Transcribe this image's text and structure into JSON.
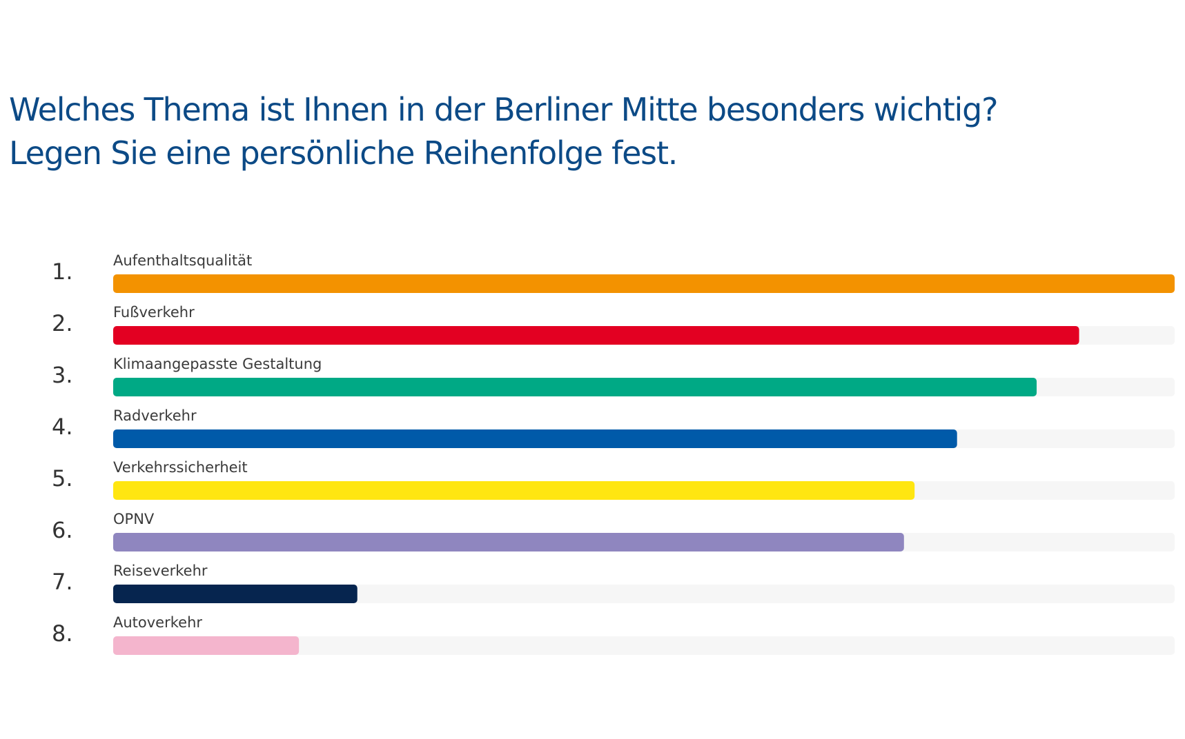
{
  "title_lines": [
    "Welches Thema ist Ihnen in der Berliner Mitte besonders wichtig?",
    "Legen Sie eine persönliche Reihenfolge fest."
  ],
  "colors": {
    "title": "#0c4a86",
    "track": "#f6f6f6",
    "rank_text": "#333333",
    "label_text": "#3a3a3a"
  },
  "chart_data": {
    "type": "bar",
    "orientation": "horizontal",
    "title": "Welches Thema ist Ihnen in der Berliner Mitte besonders wichtig? Legen Sie eine persönliche Reihenfolge fest.",
    "xlim": [
      0,
      100
    ],
    "grid": false,
    "ranks": [
      "1.",
      "2.",
      "3.",
      "4.",
      "5.",
      "6.",
      "7.",
      "8."
    ],
    "categories": [
      "Aufenthaltsqualität",
      "Fußverkehr",
      "Klimaangepasste Gestaltung",
      "Radverkehr",
      "Verkehrssicherheit",
      "OPNV",
      "Reiseverkehr",
      "Autoverkehr"
    ],
    "values": [
      100,
      91,
      87,
      79.5,
      75.5,
      74.5,
      23,
      17.5
    ],
    "bar_colors": [
      "#f39200",
      "#e30022",
      "#00a985",
      "#005aa9",
      "#ffe611",
      "#8f86bf",
      "#06254f",
      "#f4b5cd"
    ]
  }
}
